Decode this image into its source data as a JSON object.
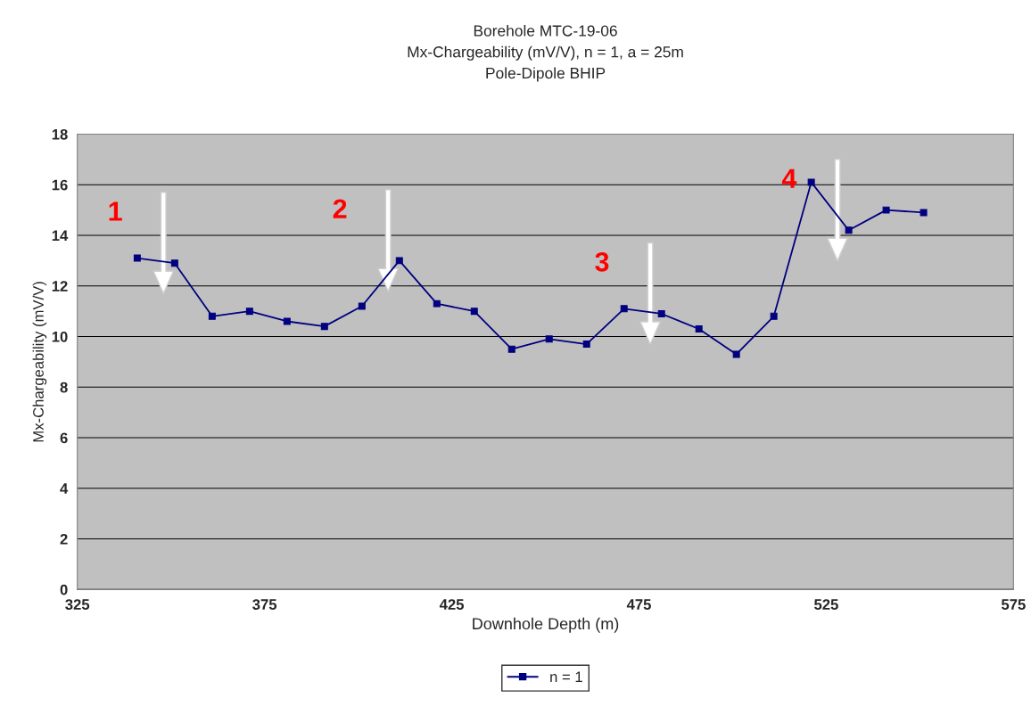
{
  "chart_data": {
    "type": "line",
    "title": "Borehole MTC-19-06\nMx-Chargeability (mV/V), n = 1, a = 25m\nPole-Dipole BHIP",
    "xlabel": "Downhole Depth (m)",
    "ylabel": "Mx-Chargeability (mV/V)",
    "x": [
      341,
      351,
      361,
      371,
      381,
      391,
      401,
      411,
      421,
      431,
      441,
      451,
      461,
      471,
      481,
      491,
      501,
      511,
      521,
      531,
      541,
      551
    ],
    "series": [
      {
        "name": "n = 1",
        "color": "#000080",
        "values": [
          13.1,
          12.9,
          10.8,
          11.0,
          10.6,
          10.4,
          11.2,
          13.0,
          11.3,
          11.0,
          9.5,
          9.9,
          9.7,
          11.1,
          10.9,
          10.3,
          9.3,
          10.8,
          16.1,
          14.2,
          15.0,
          14.9
        ]
      }
    ],
    "xlim": [
      325,
      575
    ],
    "xticks": [
      325,
      375,
      425,
      475,
      525,
      575
    ],
    "ylim": [
      0,
      18
    ],
    "yticks": [
      0,
      2,
      4,
      6,
      8,
      10,
      12,
      14,
      16,
      18
    ],
    "grid": "y",
    "legend": "bottom",
    "marker": "square",
    "line_style": "solid",
    "annotations": [
      {
        "text": "1",
        "x": 351,
        "y": 12.9
      },
      {
        "text": "2",
        "x": 411,
        "y": 13.0
      },
      {
        "text": "3",
        "x": 481,
        "y": 10.9
      },
      {
        "text": "4",
        "x": 531,
        "y": 14.2
      }
    ]
  }
}
